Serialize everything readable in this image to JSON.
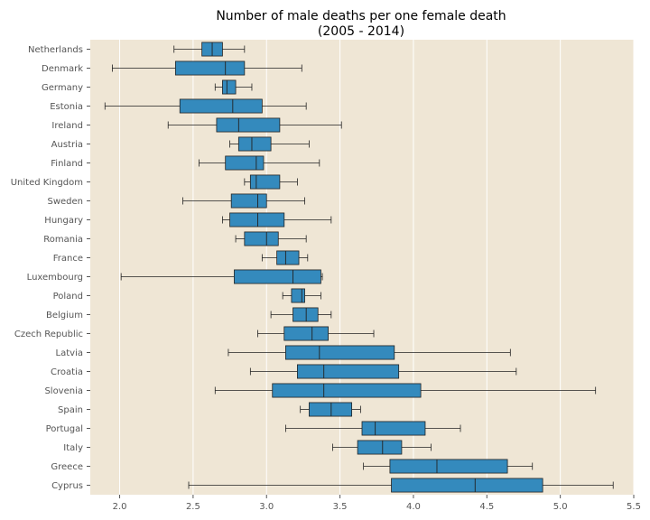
{
  "chart_data": {
    "type": "boxplot",
    "orientation": "horizontal",
    "title_line1": "Number of male deaths per one female death",
    "title_line2": "(2005 - 2014)",
    "xlabel": "",
    "ylabel": "",
    "xlim": [
      1.8,
      5.5
    ],
    "x_ticks": [
      2.0,
      2.5,
      3.0,
      3.5,
      4.0,
      4.5,
      5.0,
      5.5
    ],
    "x_tick_labels": [
      "2.0",
      "2.5",
      "3.0",
      "3.5",
      "4.0",
      "4.5",
      "5.0",
      "5.5"
    ],
    "grid": "vertical",
    "colors": {
      "plot_background": "#efe6d5",
      "box_fill": "#348abd",
      "box_edge": "#222222",
      "grid": "#ffffff",
      "whisker": "#222222"
    },
    "categories": [
      "Netherlands",
      "Denmark",
      "Germany",
      "Estonia",
      "Ireland",
      "Austria",
      "Finland",
      "United Kingdom",
      "Sweden",
      "Hungary",
      "Romania",
      "France",
      "Luxembourg",
      "Poland",
      "Belgium",
      "Czech Republic",
      "Latvia",
      "Croatia",
      "Slovenia",
      "Spain",
      "Portugal",
      "Italy",
      "Greece",
      "Cyprus"
    ],
    "boxes": [
      {
        "whislo": 2.37,
        "q1": 2.56,
        "med": 2.63,
        "q3": 2.7,
        "whishi": 2.85
      },
      {
        "whislo": 1.95,
        "q1": 2.38,
        "med": 2.72,
        "q3": 2.85,
        "whishi": 3.24
      },
      {
        "whislo": 2.65,
        "q1": 2.7,
        "med": 2.73,
        "q3": 2.79,
        "whishi": 2.9
      },
      {
        "whislo": 1.9,
        "q1": 2.41,
        "med": 2.77,
        "q3": 2.97,
        "whishi": 3.27
      },
      {
        "whislo": 2.33,
        "q1": 2.66,
        "med": 2.81,
        "q3": 3.09,
        "whishi": 3.51
      },
      {
        "whislo": 2.75,
        "q1": 2.81,
        "med": 2.9,
        "q3": 3.03,
        "whishi": 3.29
      },
      {
        "whislo": 2.54,
        "q1": 2.72,
        "med": 2.93,
        "q3": 2.98,
        "whishi": 3.36
      },
      {
        "whislo": 2.85,
        "q1": 2.89,
        "med": 2.93,
        "q3": 3.09,
        "whishi": 3.21
      },
      {
        "whislo": 2.43,
        "q1": 2.76,
        "med": 2.94,
        "q3": 3.0,
        "whishi": 3.26
      },
      {
        "whislo": 2.7,
        "q1": 2.75,
        "med": 2.94,
        "q3": 3.12,
        "whishi": 3.44
      },
      {
        "whislo": 2.79,
        "q1": 2.85,
        "med": 3.0,
        "q3": 3.08,
        "whishi": 3.27
      },
      {
        "whislo": 2.97,
        "q1": 3.07,
        "med": 3.13,
        "q3": 3.22,
        "whishi": 3.28
      },
      {
        "whislo": 2.01,
        "q1": 2.78,
        "med": 3.18,
        "q3": 3.37,
        "whishi": 3.38
      },
      {
        "whislo": 3.11,
        "q1": 3.17,
        "med": 3.24,
        "q3": 3.26,
        "whishi": 3.37
      },
      {
        "whislo": 3.03,
        "q1": 3.18,
        "med": 3.27,
        "q3": 3.35,
        "whishi": 3.44
      },
      {
        "whislo": 2.94,
        "q1": 3.12,
        "med": 3.31,
        "q3": 3.42,
        "whishi": 3.73
      },
      {
        "whislo": 2.74,
        "q1": 3.13,
        "med": 3.36,
        "q3": 3.87,
        "whishi": 4.66
      },
      {
        "whislo": 2.89,
        "q1": 3.21,
        "med": 3.39,
        "q3": 3.9,
        "whishi": 4.7
      },
      {
        "whislo": 2.65,
        "q1": 3.04,
        "med": 3.39,
        "q3": 4.05,
        "whishi": 5.24
      },
      {
        "whislo": 3.23,
        "q1": 3.29,
        "med": 3.44,
        "q3": 3.58,
        "whishi": 3.64
      },
      {
        "whislo": 3.13,
        "q1": 3.65,
        "med": 3.74,
        "q3": 4.08,
        "whishi": 4.32
      },
      {
        "whislo": 3.45,
        "q1": 3.62,
        "med": 3.79,
        "q3": 3.92,
        "whishi": 4.12
      },
      {
        "whislo": 3.66,
        "q1": 3.84,
        "med": 4.16,
        "q3": 4.64,
        "whishi": 4.81
      },
      {
        "whislo": 2.47,
        "q1": 3.85,
        "med": 4.42,
        "q3": 4.88,
        "whishi": 5.36
      }
    ]
  }
}
